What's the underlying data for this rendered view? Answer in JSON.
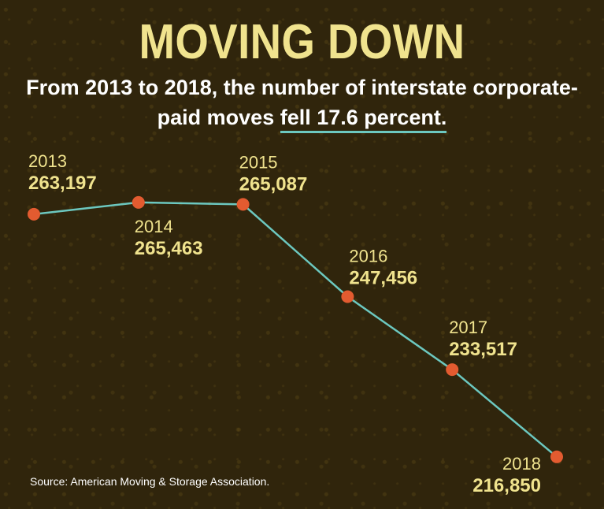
{
  "header": {
    "title": "MOVING DOWN",
    "subtitle_pre": "From 2013 to 2018, the number of interstate corporate-paid moves ",
    "subtitle_highlight": "fell 17.6 percent."
  },
  "source": "Source: American Moving & Storage Association.",
  "colors": {
    "background": "#30250c",
    "title": "#f0e38e",
    "line": "#6cc8c0",
    "marker": "#e35b30",
    "label_year": "#f0e38e",
    "label_value": "#f0e38e"
  },
  "chart_data": {
    "type": "line",
    "x": [
      "2013",
      "2014",
      "2015",
      "2016",
      "2017",
      "2018"
    ],
    "values": [
      263197,
      265463,
      265087,
      247456,
      233517,
      216850
    ],
    "value_labels": [
      "263,197",
      "265,463",
      "265,087",
      "247,456",
      "233,517",
      "216,850"
    ],
    "ylim": [
      212000,
      268000
    ],
    "grid": false,
    "legend": "none"
  }
}
